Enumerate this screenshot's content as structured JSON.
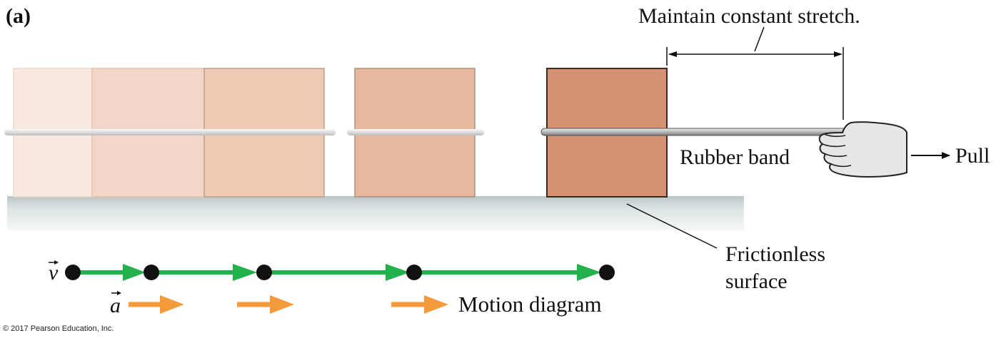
{
  "panel_label": "(a)",
  "labels": {
    "stretch_note": "Maintain constant stretch.",
    "rubber_band": "Rubber band",
    "pull": "Pull",
    "surface_line1": "Frictionless",
    "surface_line2": "surface",
    "motion_diagram": "Motion diagram",
    "velocity_symbol": "v",
    "acceleration_symbol": "a"
  },
  "copyright": "© 2017 Pearson Education, Inc.",
  "colors": {
    "block_1": "#f7e9df",
    "block_2": "#f2d7c8",
    "block_3": "#eecab4",
    "block_4": "#e6b8a0",
    "block_5": "#d69172",
    "velocity_arrow": "#23b14d",
    "acceleration_arrow": "#f39b3c",
    "surface": "#dfe6e6"
  },
  "icons": {
    "hand": "hand-pulling-icon"
  }
}
